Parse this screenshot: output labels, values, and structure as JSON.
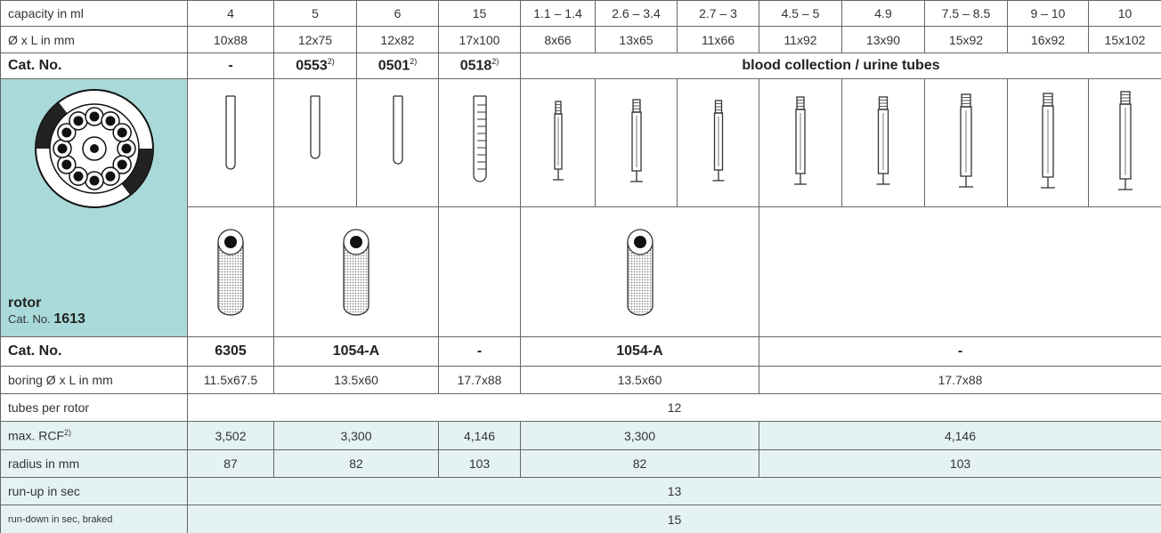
{
  "table": {
    "rows": [
      {
        "label": "capacity in ml",
        "cells": [
          "4",
          "5",
          "6",
          "15",
          "1.1 – 1.4",
          "2.6 – 3.4",
          "2.7 – 3",
          "4.5 – 5",
          "4.9",
          "7.5 – 8.5",
          "9 – 10",
          "10"
        ]
      },
      {
        "label": "Ø x L in mm",
        "cells": [
          "10x88",
          "12x75",
          "12x82",
          "17x100",
          "8x66",
          "13x65",
          "11x66",
          "11x92",
          "13x90",
          "15x92",
          "16x92",
          "15x102"
        ]
      },
      {
        "label": "Cat. No.",
        "cells": [
          {
            "text": "-"
          },
          {
            "text": "0553",
            "note": "2)"
          },
          {
            "text": "0501",
            "note": "2)"
          },
          {
            "text": "0518",
            "note": "2)"
          },
          {
            "text": "blood collection / urine tubes"
          }
        ]
      },
      {
        "label": "Cat. No.",
        "cells": [
          "6305",
          "1054-A",
          "-",
          "1054-A",
          "-"
        ]
      },
      {
        "label": "boring Ø x L in mm",
        "cells": [
          "11.5x67.5",
          "13.5x60",
          "17.7x88",
          "13.5x60",
          "17.7x88"
        ]
      },
      {
        "label": "tubes per rotor",
        "cells": [
          "12"
        ]
      },
      {
        "label": "max. RCF",
        "note": "2)",
        "cells": [
          "3,502",
          "3,300",
          "4,146",
          "3,300",
          "4,146"
        ]
      },
      {
        "label": "radius in mm",
        "cells": [
          "87",
          "82",
          "103",
          "82",
          "103"
        ]
      },
      {
        "label": "run-up in sec",
        "cells": [
          "13"
        ]
      },
      {
        "label": "run-down in sec, braked",
        "cells": [
          "15"
        ]
      }
    ],
    "rotor": {
      "name": "rotor",
      "cat_label": "Cat. No.",
      "cat_no": "1613"
    }
  }
}
